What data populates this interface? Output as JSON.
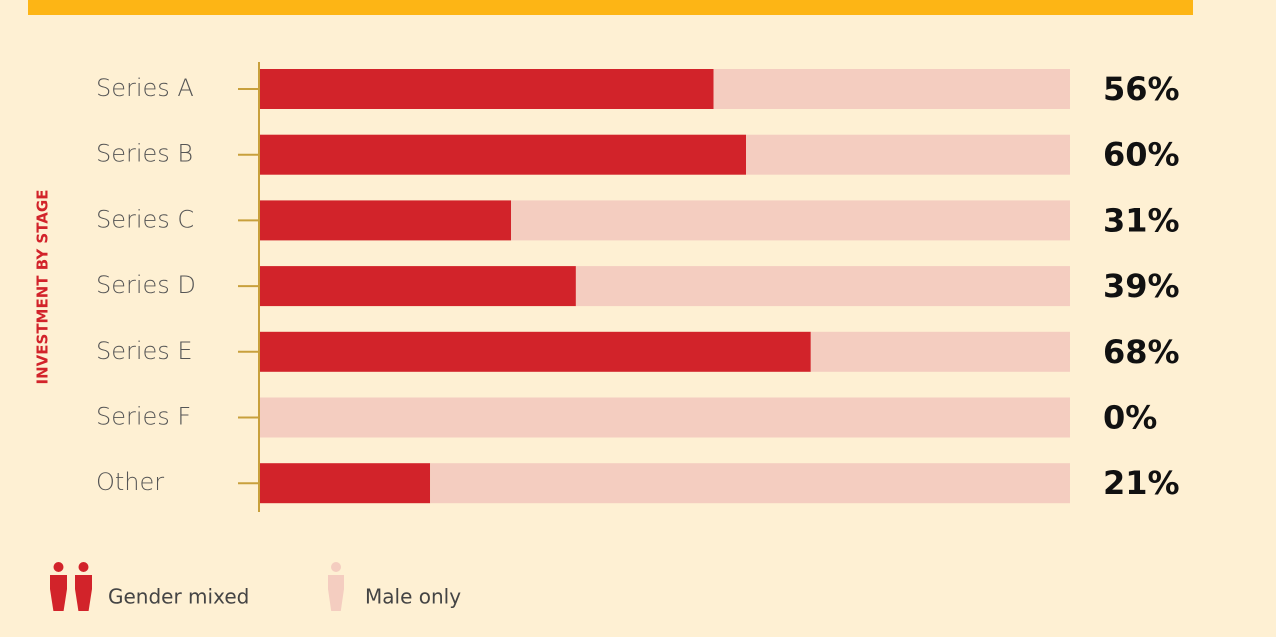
{
  "chart_data": {
    "type": "bar",
    "orientation": "horizontal",
    "stacked": true,
    "y_label": "INVESTMENT BY STAGE",
    "categories": [
      "Series A",
      "Series B",
      "Series C",
      "Series D",
      "Series E",
      "Series F",
      "Other"
    ],
    "series": [
      {
        "name": "Gender mixed",
        "color": "#d2232a",
        "values": [
          56,
          60,
          31,
          39,
          68,
          0,
          21
        ],
        "value_labels": [
          "56%",
          "60%",
          "31%",
          "39%",
          "68%",
          "0%",
          "21%"
        ]
      },
      {
        "name": "Male only",
        "color": "#f4cdc0",
        "values": [
          44,
          40,
          69,
          61,
          32,
          100,
          79
        ]
      }
    ],
    "xlim": [
      0,
      100
    ]
  }
}
